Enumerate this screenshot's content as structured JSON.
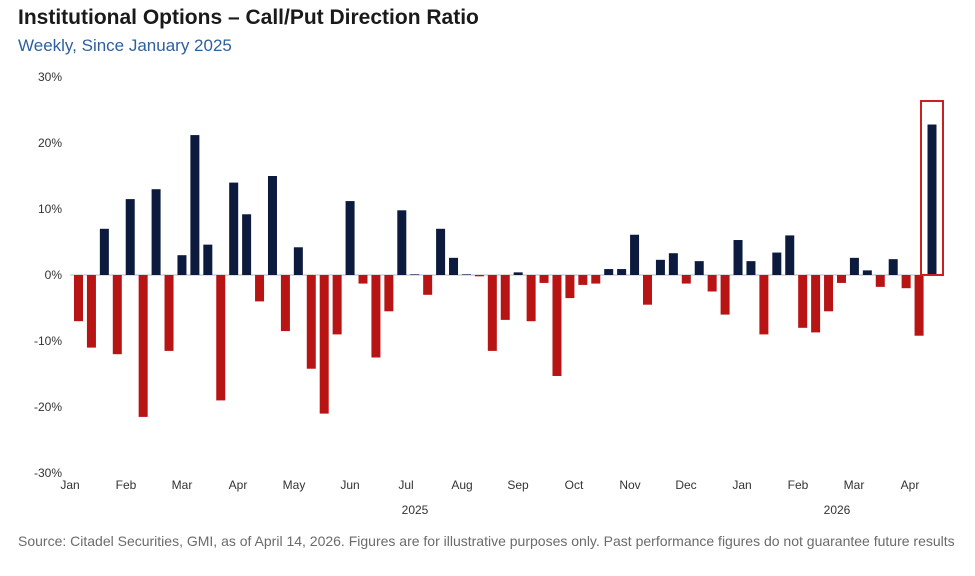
{
  "header": {
    "title": "Institutional Options – Call/Put Direction Ratio",
    "subtitle": "Weekly, Since January 2025"
  },
  "footer": {
    "source": "Source: Citadel Securities, GMI, as of April 14, 2026. Figures are for illustrative purposes only. Past performance figures do not guarantee future results"
  },
  "chart_data": {
    "type": "bar",
    "title": "Institutional Options – Call/Put Direction Ratio",
    "subtitle": "Weekly, Since January 2025",
    "xlabel": "",
    "ylabel": "",
    "ylim": [
      -30,
      30
    ],
    "yticks": [
      -30,
      -20,
      -10,
      0,
      10,
      20,
      30
    ],
    "ytick_labels": [
      "-30%",
      "-20%",
      "-10%",
      "0%",
      "10%",
      "20%",
      "30%"
    ],
    "grid": false,
    "x_month_labels": [
      "Jan",
      "Feb",
      "Mar",
      "Apr",
      "May",
      "Jun",
      "Jul",
      "Aug",
      "Sep",
      "Oct",
      "Nov",
      "Dec",
      "Jan",
      "Feb",
      "Mar",
      "Apr"
    ],
    "year_labels": [
      "2025",
      "2026"
    ],
    "positive_color": "#0c1a3d",
    "negative_color": "#b81414",
    "highlight_color": "#cc1f1f",
    "highlight_last": true,
    "unit": "%",
    "values": [
      -7,
      -11,
      7,
      -12,
      11.5,
      -21.5,
      13,
      -11.5,
      3,
      21.2,
      4.6,
      -19,
      14,
      9.2,
      -4,
      15,
      -8.5,
      4.2,
      -14.2,
      -21,
      -9,
      11.2,
      -1.3,
      -12.5,
      -5.5,
      9.8,
      0.1,
      -3,
      7,
      2.6,
      0.1,
      -0.2,
      -11.5,
      -6.8,
      0.4,
      -7,
      -1.2,
      -15.3,
      -3.5,
      -1.5,
      -1.3,
      0.9,
      0.9,
      6.1,
      -4.5,
      2.3,
      3.3,
      -1.3,
      2.1,
      -2.5,
      -6,
      5.3,
      2.1,
      -9,
      3.4,
      6,
      -8,
      -8.7,
      -5.5,
      -1.2,
      2.6,
      0.7,
      -1.8,
      2.4,
      -2,
      -9.2,
      22.8
    ]
  }
}
